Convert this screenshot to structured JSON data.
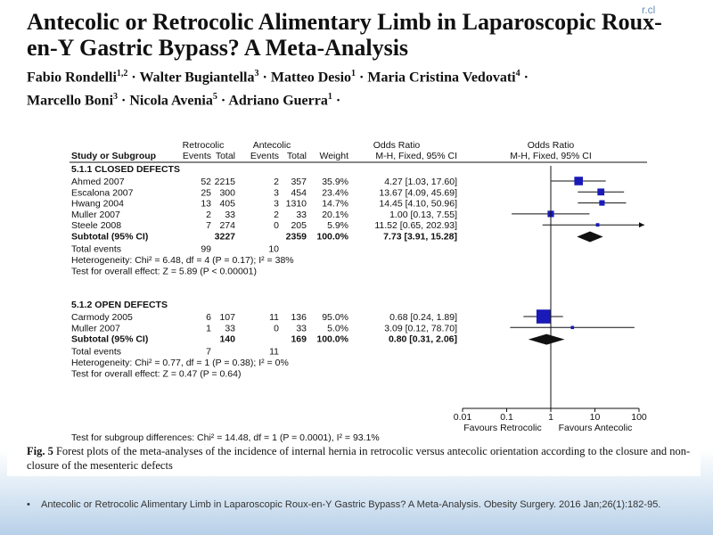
{
  "corner_text": "r.cl",
  "title": "Antecolic or Retrocolic Alimentary Limb in Laparoscopic Roux-en-Y Gastric Bypass? A Meta-Analysis",
  "authors_line1": [
    {
      "name": "Fabio Rondelli",
      "sup": "1,2"
    },
    {
      "name": "Walter Bugiantella",
      "sup": "3"
    },
    {
      "name": "Matteo Desio",
      "sup": "1"
    },
    {
      "name": "Maria Cristina Vedovati",
      "sup": "4"
    }
  ],
  "authors_line2": [
    {
      "name": "Marcello Boni",
      "sup": "3"
    },
    {
      "name": "Nicola Avenia",
      "sup": "5"
    },
    {
      "name": "Adriano Guerra",
      "sup": "1"
    }
  ],
  "headers": {
    "retrocolic": "Retrocolic",
    "antecolic": "Antecolic",
    "odds_ratio": "Odds Ratio",
    "odds_ratio_plot": "Odds Ratio",
    "study": "Study or Subgroup",
    "events_r": "Events",
    "total_r": "Total",
    "events_a": "Events",
    "total_a": "Total",
    "weight": "Weight",
    "method": "M-H, Fixed, 95% CI",
    "method_plot": "M-H, Fixed, 95% CI"
  },
  "chart_data": {
    "type": "forest",
    "x_scale": "log",
    "xlim": [
      0.01,
      100
    ],
    "ticks": [
      "0.01",
      "0.1",
      "1",
      "10",
      "100"
    ],
    "xlabel_left": "Favours Retrocolic",
    "xlabel_right": "Favours Antecolic",
    "groups": [
      {
        "heading": "5.1.1 CLOSED DEFECTS",
        "studies": [
          {
            "name": "Ahmed 2007",
            "r_events": "52",
            "r_total": "2215",
            "a_events": "2",
            "a_total": "357",
            "weight": "35.9%",
            "ci_text": "4.27 [1.03, 17.60]",
            "or": 4.27,
            "lo": 1.03,
            "hi": 17.6,
            "w": 35.9
          },
          {
            "name": "Escalona 2007",
            "r_events": "25",
            "r_total": "300",
            "a_events": "3",
            "a_total": "454",
            "weight": "23.4%",
            "ci_text": "13.67 [4.09, 45.69]",
            "or": 13.67,
            "lo": 4.09,
            "hi": 45.69,
            "w": 23.4
          },
          {
            "name": "Hwang 2004",
            "r_events": "13",
            "r_total": "405",
            "a_events": "3",
            "a_total": "1310",
            "weight": "14.7%",
            "ci_text": "14.45 [4.10, 50.96]",
            "or": 14.45,
            "lo": 4.1,
            "hi": 50.96,
            "w": 14.7
          },
          {
            "name": "Muller 2007",
            "r_events": "2",
            "r_total": "33",
            "a_events": "2",
            "a_total": "33",
            "weight": "20.1%",
            "ci_text": "1.00 [0.13, 7.55]",
            "or": 1.0,
            "lo": 0.13,
            "hi": 7.55,
            "w": 20.1
          },
          {
            "name": "Steele 2008",
            "r_events": "7",
            "r_total": "274",
            "a_events": "0",
            "a_total": "205",
            "weight": "5.9%",
            "ci_text": "11.52 [0.65, 202.93]",
            "or": 11.52,
            "lo": 0.65,
            "hi": 202.93,
            "w": 5.9
          }
        ],
        "subtotal": {
          "label": "Subtotal (95% CI)",
          "r_total": "3227",
          "a_total": "2359",
          "weight": "100.0%",
          "ci_text": "7.73 [3.91, 15.28]",
          "or": 7.73,
          "lo": 3.91,
          "hi": 15.28
        },
        "total_events": {
          "label": "Total events",
          "r": "99",
          "a": "10"
        },
        "heterogeneity": "Heterogeneity: Chi² = 6.48, df = 4 (P = 0.17); I² = 38%",
        "overall_effect": "Test for overall effect: Z = 5.89 (P < 0.00001)"
      },
      {
        "heading": "5.1.2 OPEN DEFECTS",
        "studies": [
          {
            "name": "Carmody 2005",
            "r_events": "6",
            "r_total": "107",
            "a_events": "11",
            "a_total": "136",
            "weight": "95.0%",
            "ci_text": "0.68 [0.24, 1.89]",
            "or": 0.68,
            "lo": 0.24,
            "hi": 1.89,
            "w": 95.0
          },
          {
            "name": "Muller 2007",
            "r_events": "1",
            "r_total": "33",
            "a_events": "0",
            "a_total": "33",
            "weight": "5.0%",
            "ci_text": "3.09 [0.12, 78.70]",
            "or": 3.09,
            "lo": 0.12,
            "hi": 78.7,
            "w": 5.0
          }
        ],
        "subtotal": {
          "label": "Subtotal (95% CI)",
          "r_total": "140",
          "a_total": "169",
          "weight": "100.0%",
          "ci_text": "0.80 [0.31, 2.06]",
          "or": 0.8,
          "lo": 0.31,
          "hi": 2.06
        },
        "total_events": {
          "label": "Total events",
          "r": "7",
          "a": "11"
        },
        "heterogeneity": "Heterogeneity: Chi² = 0.77, df = 1 (P = 0.38); I² = 0%",
        "overall_effect": "Test for overall effect: Z = 0.47 (P = 0.64)"
      }
    ],
    "subgroup_test": "Test for subgroup differences: Chi² = 14.48, df = 1 (P = 0.0001), I² = 93.1%",
    "marker_color": "#1a1ab8"
  },
  "caption": {
    "label": "Fig. 5",
    "text": "Forest plots of the meta-analyses of the incidence of internal hernia in retrocolic versus antecolic orientation according to the closure and non-closure of the mesenteric defects"
  },
  "footer": "Antecolic or Retrocolic Alimentary Limb in Laparoscopic Roux-en-Y Gastric Bypass? A Meta-Analysis. Obesity Surgery. 2016 Jan;26(1):182-95."
}
